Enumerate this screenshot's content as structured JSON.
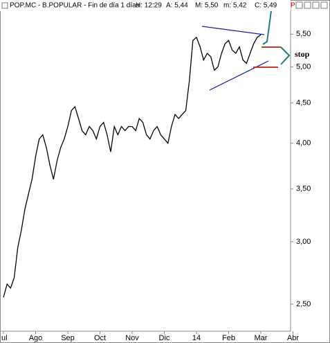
{
  "chart_data": {
    "type": "line",
    "log_scale": true,
    "grid": false,
    "header": {
      "title": "POP.MC - B.POPULAR - Fin de día 1 días",
      "fields": [
        "H: 12:29",
        "A: 5,44",
        "M: 5,50",
        "m: 5,42",
        "C: 5,49"
      ],
      "flag": "P"
    },
    "annotation": "stop",
    "categories": [
      "ul",
      null,
      null,
      null,
      null,
      null,
      null,
      null,
      null,
      "Ago",
      null,
      null,
      null,
      null,
      null,
      null,
      null,
      null,
      "Sep",
      null,
      null,
      null,
      null,
      null,
      null,
      null,
      null,
      "Oct",
      null,
      null,
      null,
      null,
      null,
      null,
      null,
      null,
      "Nov",
      null,
      null,
      null,
      null,
      null,
      null,
      null,
      null,
      "Dic",
      null,
      null,
      null,
      null,
      null,
      null,
      null,
      null,
      "14",
      null,
      null,
      null,
      null,
      null,
      null,
      null,
      null,
      "Feb",
      null,
      null,
      null,
      null,
      null,
      null,
      null,
      null,
      "Mar",
      null,
      null,
      null,
      null,
      null,
      null,
      null,
      null,
      "Abr",
      null,
      null,
      null,
      null,
      null,
      null,
      null,
      null
    ],
    "series": [
      {
        "color": "#000000",
        "values": [
          2.55,
          2.65,
          2.62,
          2.7,
          2.95,
          3.1,
          3.3,
          3.45,
          3.6,
          3.85,
          4.05,
          4.1,
          3.95,
          3.75,
          3.6,
          3.8,
          3.95,
          4.05,
          4.2,
          4.4,
          4.45,
          4.3,
          4.15,
          4.1,
          4.2,
          4.15,
          4.05,
          4.2,
          4.25,
          4.1,
          3.9,
          4.2,
          4.1,
          4.2,
          4.15,
          4.2,
          4.2,
          4.15,
          4.3,
          4.25,
          4.1,
          4.05,
          4.15,
          4.2,
          4.1,
          4.05,
          4.0,
          4.2,
          4.35,
          4.3,
          4.35,
          4.4,
          4.8,
          5.4,
          5.45,
          5.3,
          5.1,
          5.2,
          5.15,
          4.95,
          5.0,
          5.2,
          5.35,
          5.4,
          5.25,
          5.2,
          5.3,
          5.1,
          5.05,
          5.2,
          5.35,
          5.45,
          5.49,
          null,
          null,
          null,
          null,
          null,
          null,
          null,
          null,
          null,
          null,
          null,
          null,
          null,
          null,
          null,
          null,
          null
        ]
      }
    ],
    "ylim": [
      2.31,
      5.86
    ],
    "yticks": [
      {
        "value": 2.5,
        "label": "2,50"
      },
      {
        "value": 3.0,
        "label": "3,00"
      },
      {
        "value": 3.5,
        "label": "3,50"
      },
      {
        "value": 4.0,
        "label": "4,00"
      },
      {
        "value": 4.5,
        "label": "4,50"
      },
      {
        "value": 5.0,
        "label": "5,00"
      },
      {
        "value": 5.5,
        "label": "5,50"
      }
    ]
  }
}
